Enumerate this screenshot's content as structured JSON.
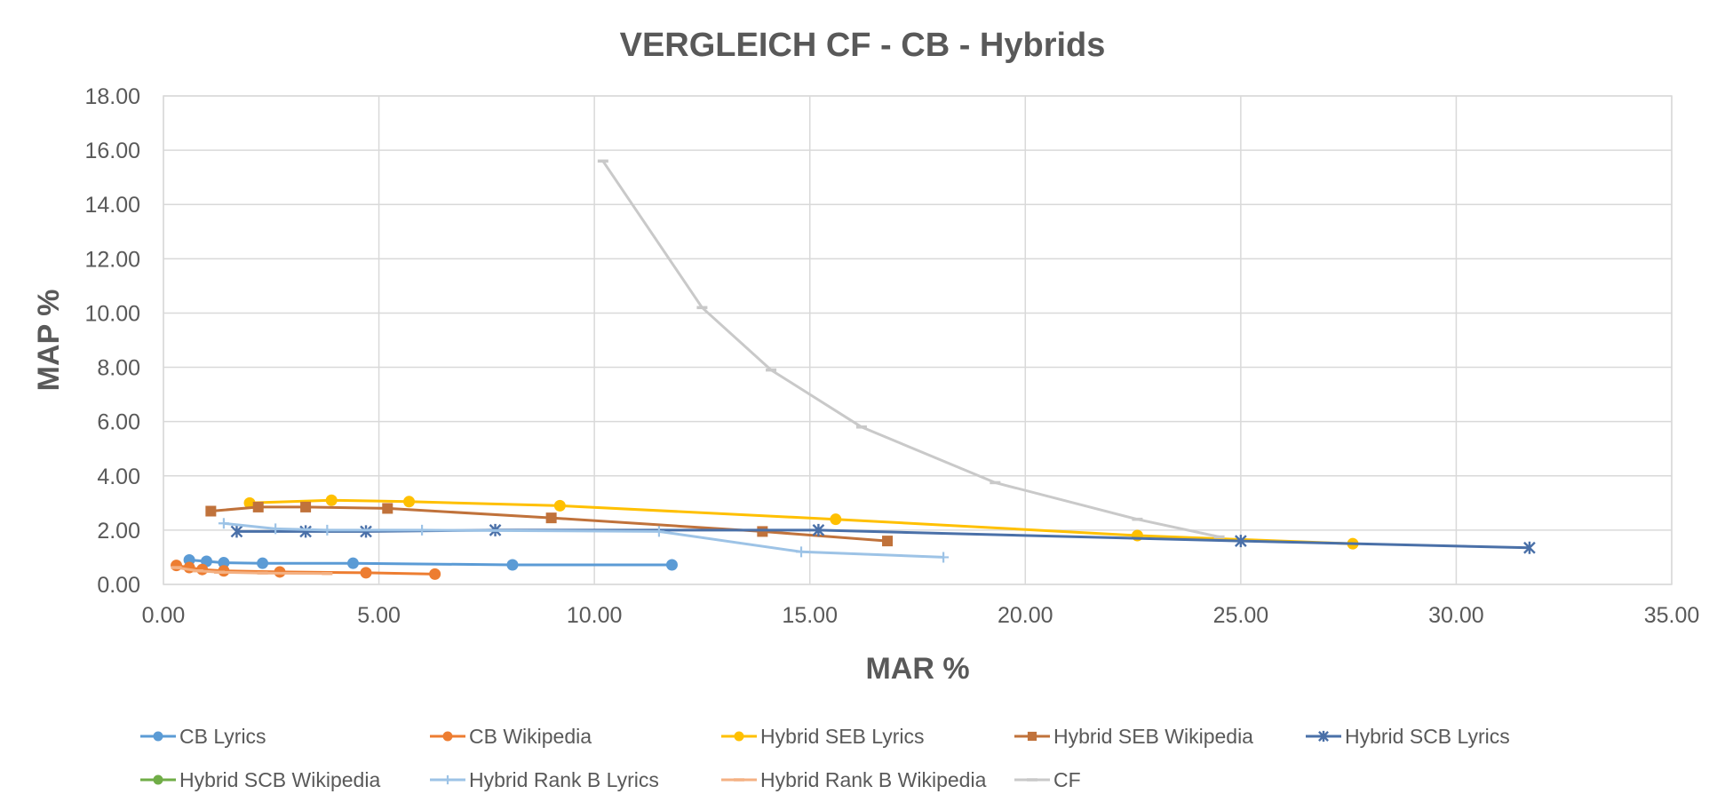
{
  "chart_data": {
    "type": "line",
    "title": "VERGLEICH CF - CB - Hybrids",
    "xlabel": "MAR %",
    "ylabel": "MAP %",
    "xlim": [
      0,
      35
    ],
    "ylim": [
      0,
      18
    ],
    "x_ticks": [
      "0.00",
      "5.00",
      "10.00",
      "15.00",
      "20.00",
      "25.00",
      "30.00",
      "35.00"
    ],
    "y_ticks": [
      "0.00",
      "2.00",
      "4.00",
      "6.00",
      "8.00",
      "10.00",
      "12.00",
      "14.00",
      "16.00",
      "18.00"
    ],
    "grid": true,
    "legend_position": "bottom",
    "series": [
      {
        "name": "CB Lyrics",
        "color": "#5b9bd5",
        "marker": "circle",
        "x": [
          0.6,
          1.0,
          1.4,
          2.3,
          4.4,
          8.1,
          11.8
        ],
        "y": [
          0.9,
          0.85,
          0.8,
          0.78,
          0.78,
          0.72,
          0.72
        ]
      },
      {
        "name": "CB Wikipedia",
        "color": "#ed7d31",
        "marker": "circle",
        "x": [
          0.3,
          0.6,
          0.9,
          1.4,
          2.7,
          4.7,
          6.3
        ],
        "y": [
          0.7,
          0.62,
          0.55,
          0.5,
          0.46,
          0.43,
          0.38
        ]
      },
      {
        "name": "Hybrid SEB Lyrics",
        "color": "#ffc000",
        "marker": "circle",
        "x": [
          2.0,
          3.9,
          5.7,
          9.2,
          15.6,
          22.6,
          27.6
        ],
        "y": [
          3.0,
          3.1,
          3.05,
          2.9,
          2.4,
          1.8,
          1.5
        ]
      },
      {
        "name": "Hybrid SEB Wikipedia",
        "color": "#c0723b",
        "marker": "square",
        "x": [
          1.1,
          2.2,
          3.3,
          5.2,
          9.0,
          13.9,
          16.8
        ],
        "y": [
          2.7,
          2.85,
          2.85,
          2.8,
          2.45,
          1.95,
          1.6
        ]
      },
      {
        "name": "Hybrid SCB Lyrics",
        "color": "#4a70a8",
        "marker": "star",
        "x": [
          1.7,
          3.3,
          4.7,
          7.7,
          15.2,
          25.0,
          31.7
        ],
        "y": [
          1.95,
          1.95,
          1.95,
          2.0,
          2.0,
          1.6,
          1.35
        ]
      },
      {
        "name": "Hybrid SCB Wikipedia",
        "color": "#70ad47",
        "marker": "circle",
        "x": [],
        "y": []
      },
      {
        "name": "Hybrid Rank B Lyrics",
        "color": "#9dc3e6",
        "marker": "plus",
        "x": [
          1.4,
          2.6,
          3.8,
          6.0,
          11.5,
          14.8,
          18.1
        ],
        "y": [
          2.25,
          2.05,
          2.0,
          2.0,
          1.95,
          1.2,
          1.0
        ]
      },
      {
        "name": "Hybrid Rank B Wikipedia",
        "color": "#f4b183",
        "marker": "dash",
        "x": [
          0.3,
          0.8,
          1.3,
          2.3,
          3.8
        ],
        "y": [
          0.62,
          0.5,
          0.45,
          0.42,
          0.4
        ]
      },
      {
        "name": "CF",
        "color": "#c9c9c9",
        "marker": "dash",
        "x": [
          10.2,
          12.5,
          14.1,
          16.2,
          19.3,
          22.6,
          24.5
        ],
        "y": [
          15.6,
          10.2,
          7.9,
          5.8,
          3.75,
          2.4,
          1.75
        ]
      }
    ]
  }
}
